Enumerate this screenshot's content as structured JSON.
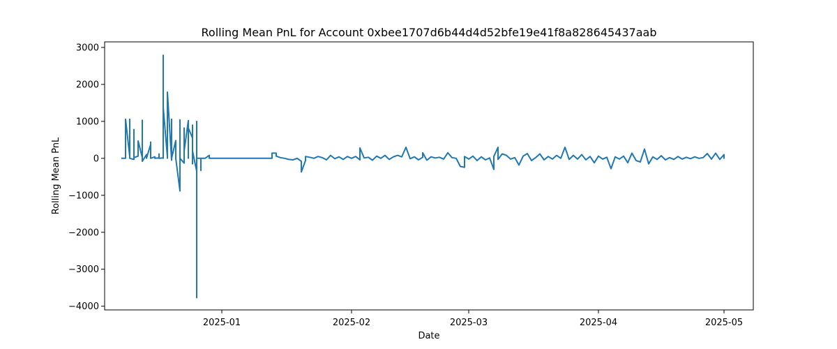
{
  "chart_data": {
    "type": "line",
    "title": "Rolling Mean PnL for Account 0xbee1707d6b44d4d52bfe19e41f8a828645437aab",
    "xlabel": "Date",
    "ylabel": "Rolling Mean PnL",
    "ylim": [
      -4100,
      3150
    ],
    "xlim": [
      "2024-12-04",
      "2025-05-08"
    ],
    "y_ticks": [
      3000,
      2000,
      1000,
      0,
      -1000,
      -2000,
      -3000,
      -4000
    ],
    "y_tick_labels": [
      "3000",
      "2000",
      "1000",
      "0",
      "−1000",
      "−2000",
      "−3000",
      "−4000"
    ],
    "x_ticks": [
      "2025-01-01",
      "2025-02-01",
      "2025-03-01",
      "2025-04-01",
      "2025-05-01"
    ],
    "x_tick_labels": [
      "2025-01",
      "2025-02",
      "2025-03",
      "2025-04",
      "2025-05"
    ],
    "grid": false,
    "line_color": "#1f77b4",
    "series": [
      {
        "points": [
          [
            "2024-12-08",
            0
          ],
          [
            "2024-12-09",
            0
          ],
          [
            "2024-12-09",
            300
          ],
          [
            "2024-12-09",
            1060
          ],
          [
            "2024-12-10",
            50
          ],
          [
            "2024-12-10",
            1060
          ],
          [
            "2024-12-10",
            0
          ],
          [
            "2024-12-11",
            -30
          ],
          [
            "2024-12-11",
            780
          ],
          [
            "2024-12-11",
            20
          ],
          [
            "2024-12-12",
            60
          ],
          [
            "2024-12-12",
            350
          ],
          [
            "2024-12-12",
            470
          ],
          [
            "2024-12-13",
            20
          ],
          [
            "2024-12-13",
            1030
          ],
          [
            "2024-12-13",
            -80
          ],
          [
            "2024-12-14",
            100
          ],
          [
            "2024-12-14",
            0
          ],
          [
            "2024-12-15",
            380
          ],
          [
            "2024-12-15",
            440
          ],
          [
            "2024-12-15",
            0
          ],
          [
            "2024-12-16",
            40
          ],
          [
            "2024-12-16",
            0
          ],
          [
            "2024-12-17",
            10
          ],
          [
            "2024-12-17",
            120
          ],
          [
            "2024-12-17",
            0
          ],
          [
            "2024-12-18",
            10
          ],
          [
            "2024-12-18",
            2790
          ],
          [
            "2024-12-18",
            0
          ],
          [
            "2024-12-18",
            1380
          ],
          [
            "2024-12-19",
            40
          ],
          [
            "2024-12-19",
            1300
          ],
          [
            "2024-12-19",
            0
          ],
          [
            "2024-12-19",
            1790
          ],
          [
            "2024-12-20",
            -50
          ],
          [
            "2024-12-20",
            1060
          ],
          [
            "2024-12-20",
            0
          ],
          [
            "2024-12-21",
            480
          ],
          [
            "2024-12-21",
            -20
          ],
          [
            "2024-12-21",
            0
          ],
          [
            "2024-12-22",
            -880
          ],
          [
            "2024-12-22",
            1040
          ],
          [
            "2024-12-22",
            0
          ],
          [
            "2024-12-23",
            -130
          ],
          [
            "2024-12-23",
            820
          ],
          [
            "2024-12-23",
            200
          ],
          [
            "2024-12-24",
            1020
          ],
          [
            "2024-12-24",
            0
          ],
          [
            "2024-12-24",
            820
          ],
          [
            "2024-12-25",
            550
          ],
          [
            "2024-12-25",
            900
          ],
          [
            "2024-12-25",
            -150
          ],
          [
            "2024-12-25",
            200
          ],
          [
            "2024-12-26",
            -350
          ],
          [
            "2024-12-26",
            0
          ],
          [
            "2024-12-26",
            -3770
          ],
          [
            "2024-12-26",
            1000
          ],
          [
            "2024-12-26",
            0
          ],
          [
            "2024-12-27",
            0
          ],
          [
            "2024-12-27",
            -330
          ],
          [
            "2024-12-27",
            0
          ],
          [
            "2024-12-28",
            0
          ],
          [
            "2024-12-29",
            80
          ],
          [
            "2024-12-29",
            0
          ],
          [
            "2025-01-10",
            0
          ],
          [
            "2025-01-13",
            0
          ],
          [
            "2025-01-13",
            140
          ],
          [
            "2025-01-14",
            140
          ],
          [
            "2025-01-14",
            60
          ],
          [
            "2025-01-15",
            20
          ],
          [
            "2025-01-16",
            0
          ],
          [
            "2025-01-17",
            -30
          ],
          [
            "2025-01-18",
            -40
          ],
          [
            "2025-01-19",
            0
          ],
          [
            "2025-01-20",
            -80
          ],
          [
            "2025-01-20",
            -370
          ],
          [
            "2025-01-21",
            -60
          ],
          [
            "2025-01-21",
            50
          ],
          [
            "2025-01-22",
            30
          ],
          [
            "2025-01-23",
            0
          ],
          [
            "2025-01-24",
            50
          ],
          [
            "2025-01-25",
            20
          ],
          [
            "2025-01-26",
            -40
          ],
          [
            "2025-01-27",
            80
          ],
          [
            "2025-01-28",
            -10
          ],
          [
            "2025-01-29",
            40
          ],
          [
            "2025-01-30",
            -30
          ],
          [
            "2025-01-31",
            50
          ],
          [
            "2025-02-01",
            0
          ],
          [
            "2025-02-02",
            50
          ],
          [
            "2025-02-03",
            -40
          ],
          [
            "2025-02-03",
            280
          ],
          [
            "2025-02-04",
            10
          ],
          [
            "2025-02-05",
            30
          ],
          [
            "2025-02-06",
            -50
          ],
          [
            "2025-02-07",
            60
          ],
          [
            "2025-02-08",
            0
          ],
          [
            "2025-02-09",
            80
          ],
          [
            "2025-02-10",
            -30
          ],
          [
            "2025-02-11",
            40
          ],
          [
            "2025-02-12",
            80
          ],
          [
            "2025-02-13",
            40
          ],
          [
            "2025-02-14",
            300
          ],
          [
            "2025-02-15",
            -10
          ],
          [
            "2025-02-16",
            40
          ],
          [
            "2025-02-17",
            -40
          ],
          [
            "2025-02-18",
            30
          ],
          [
            "2025-02-18",
            150
          ],
          [
            "2025-02-19",
            -50
          ],
          [
            "2025-02-20",
            40
          ],
          [
            "2025-02-21",
            10
          ],
          [
            "2025-02-22",
            30
          ],
          [
            "2025-02-23",
            -20
          ],
          [
            "2025-02-24",
            150
          ],
          [
            "2025-02-25",
            20
          ],
          [
            "2025-02-26",
            0
          ],
          [
            "2025-02-27",
            -220
          ],
          [
            "2025-02-28",
            -240
          ],
          [
            "2025-02-28",
            50
          ],
          [
            "2025-03-01",
            -20
          ],
          [
            "2025-03-02",
            60
          ],
          [
            "2025-03-03",
            -60
          ],
          [
            "2025-03-04",
            40
          ],
          [
            "2025-03-05",
            -40
          ],
          [
            "2025-03-06",
            10
          ],
          [
            "2025-03-07",
            -300
          ],
          [
            "2025-03-07",
            50
          ],
          [
            "2025-03-08",
            300
          ],
          [
            "2025-03-08",
            -30
          ],
          [
            "2025-03-09",
            120
          ],
          [
            "2025-03-10",
            80
          ],
          [
            "2025-03-11",
            -20
          ],
          [
            "2025-03-12",
            20
          ],
          [
            "2025-03-13",
            -180
          ],
          [
            "2025-03-14",
            60
          ],
          [
            "2025-03-15",
            130
          ],
          [
            "2025-03-16",
            -60
          ],
          [
            "2025-03-17",
            20
          ],
          [
            "2025-03-18",
            120
          ],
          [
            "2025-03-19",
            -40
          ],
          [
            "2025-03-20",
            50
          ],
          [
            "2025-03-21",
            -20
          ],
          [
            "2025-03-22",
            80
          ],
          [
            "2025-03-23",
            0
          ],
          [
            "2025-03-24",
            300
          ],
          [
            "2025-03-25",
            -30
          ],
          [
            "2025-03-26",
            80
          ],
          [
            "2025-03-27",
            -20
          ],
          [
            "2025-03-28",
            100
          ],
          [
            "2025-03-29",
            -40
          ],
          [
            "2025-03-30",
            50
          ],
          [
            "2025-03-31",
            -120
          ],
          [
            "2025-04-01",
            60
          ],
          [
            "2025-04-02",
            -20
          ],
          [
            "2025-04-03",
            30
          ],
          [
            "2025-04-04",
            -280
          ],
          [
            "2025-04-05",
            40
          ],
          [
            "2025-04-06",
            -20
          ],
          [
            "2025-04-07",
            60
          ],
          [
            "2025-04-08",
            -120
          ],
          [
            "2025-04-09",
            140
          ],
          [
            "2025-04-10",
            -60
          ],
          [
            "2025-04-11",
            -100
          ],
          [
            "2025-04-12",
            250
          ],
          [
            "2025-04-13",
            -150
          ],
          [
            "2025-04-14",
            40
          ],
          [
            "2025-04-15",
            -30
          ],
          [
            "2025-04-16",
            70
          ],
          [
            "2025-04-17",
            -40
          ],
          [
            "2025-04-18",
            20
          ],
          [
            "2025-04-19",
            -30
          ],
          [
            "2025-04-20",
            50
          ],
          [
            "2025-04-21",
            -20
          ],
          [
            "2025-04-22",
            30
          ],
          [
            "2025-04-23",
            -10
          ],
          [
            "2025-04-24",
            40
          ],
          [
            "2025-04-25",
            0
          ],
          [
            "2025-04-26",
            20
          ],
          [
            "2025-04-27",
            130
          ],
          [
            "2025-04-28",
            -20
          ],
          [
            "2025-04-29",
            140
          ],
          [
            "2025-04-30",
            -30
          ],
          [
            "2025-05-01",
            100
          ],
          [
            "2025-05-01",
            0
          ],
          [
            "2025-05-01",
            80
          ]
        ]
      }
    ]
  }
}
